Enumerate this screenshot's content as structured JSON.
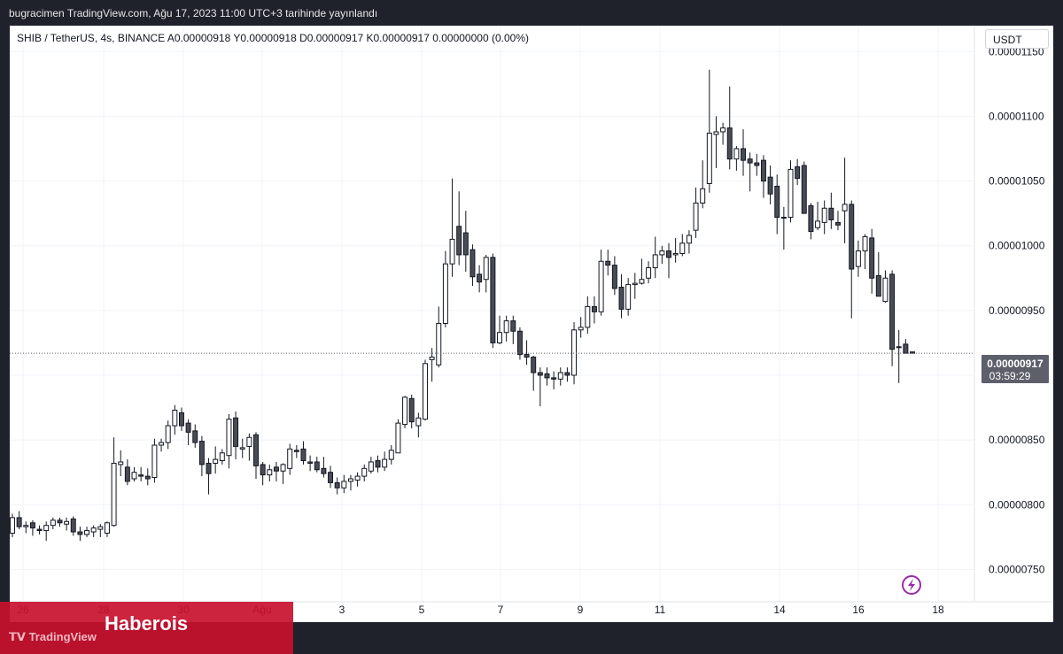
{
  "header": {
    "publish_line": "bugracimen TradingView.com, Ağu 17, 2023 11:00 UTC+3 tarihinde yayınlandı"
  },
  "legend": {
    "symbol_line": "SHIB / TetherUS, 4s, BINANCE  A0.00000918  Y0.00000918  D0.00000917  K0.00000917  0.00000000 (0.00%)"
  },
  "currency": "USDT",
  "price_badge": {
    "price": "0.00000917",
    "countdown": "03:59:29"
  },
  "footer": {
    "logo_text": "TradingView",
    "brand": "Haberois"
  },
  "colors": {
    "up_body": "#ffffff",
    "down_body": "#4a4c55",
    "wick": "#131722",
    "badge": "#5d606b",
    "brand_band": "#c8102e",
    "flash": "#9c27b0"
  },
  "icons": {
    "flash": "lightning-icon"
  },
  "chart_data": {
    "type": "candlestick",
    "y_ticks": [
      "0.00001150",
      "0.00001100",
      "0.00001050",
      "0.00001000",
      "0.00000950",
      "0.00000900",
      "0.00000850",
      "0.00000800",
      "0.00000750"
    ],
    "x_ticks": [
      "26",
      "28",
      "30",
      "Ağu",
      "3",
      "5",
      "7",
      "9",
      "11",
      "14",
      "16",
      "18"
    ],
    "ylim": [
      7.25e-06,
      1.17e-05
    ],
    "last_price": 9.17e-06,
    "candles": [
      [
        7.78e-06,
        7.93e-06,
        7.75e-06,
        7.9e-06
      ],
      [
        7.9e-06,
        7.95e-06,
        7.81e-06,
        7.83e-06
      ],
      [
        7.83e-06,
        7.87e-06,
        7.78e-06,
        7.84e-06
      ],
      [
        7.86e-06,
        7.88e-06,
        7.76e-06,
        7.82e-06
      ],
      [
        7.81e-06,
        7.84e-06,
        7.77e-06,
        7.8e-06
      ],
      [
        7.8e-06,
        7.87e-06,
        7.72e-06,
        7.84e-06
      ],
      [
        7.84e-06,
        7.9e-06,
        7.81e-06,
        7.88e-06
      ],
      [
        7.88e-06,
        7.9e-06,
        7.83e-06,
        7.86e-06
      ],
      [
        7.85e-06,
        7.9e-06,
        7.8e-06,
        7.87e-06
      ],
      [
        7.89e-06,
        7.91e-06,
        7.76e-06,
        7.79e-06
      ],
      [
        7.79e-06,
        7.83e-06,
        7.72e-06,
        7.77e-06
      ],
      [
        7.77e-06,
        7.83e-06,
        7.75e-06,
        7.8e-06
      ],
      [
        7.79e-06,
        7.84e-06,
        7.75e-06,
        7.82e-06
      ],
      [
        7.81e-06,
        7.85e-06,
        7.75e-06,
        7.83e-06
      ],
      [
        7.78e-06,
        7.87e-06,
        7.75e-06,
        7.86e-06
      ],
      [
        7.84e-06,
        8.52e-06,
        7.83e-06,
        8.32e-06
      ],
      [
        8.31e-06,
        8.42e-06,
        8.22e-06,
        8.33e-06
      ],
      [
        8.29e-06,
        8.35e-06,
        8.15e-06,
        8.18e-06
      ],
      [
        8.2e-06,
        8.29e-06,
        8.18e-06,
        8.25e-06
      ],
      [
        8.23e-06,
        8.29e-06,
        8.18e-06,
        8.22e-06
      ],
      [
        8.22e-06,
        8.28e-06,
        8.15e-06,
        8.2e-06
      ],
      [
        8.21e-06,
        8.51e-06,
        8.17e-06,
        8.46e-06
      ],
      [
        8.46e-06,
        8.51e-06,
        8.41e-06,
        8.48e-06
      ],
      [
        8.48e-06,
        8.65e-06,
        8.43e-06,
        8.61e-06
      ],
      [
        8.61e-06,
        8.77e-06,
        8.54e-06,
        8.73e-06
      ],
      [
        8.71e-06,
        8.75e-06,
        8.57e-06,
        8.61e-06
      ],
      [
        8.63e-06,
        8.66e-06,
        8.46e-06,
        8.56e-06
      ],
      [
        8.57e-06,
        8.62e-06,
        8.44e-06,
        8.48e-06
      ],
      [
        8.49e-06,
        8.53e-06,
        8.22e-06,
        8.31e-06
      ],
      [
        8.32e-06,
        8.36e-06,
        8.08e-06,
        8.24e-06
      ],
      [
        8.32e-06,
        8.45e-06,
        8.24e-06,
        8.35e-06
      ],
      [
        8.34e-06,
        8.43e-06,
        8.31e-06,
        8.4e-06
      ],
      [
        8.38e-06,
        8.7e-06,
        8.28e-06,
        8.66e-06
      ],
      [
        8.67e-06,
        8.72e-06,
        8.35e-06,
        8.45e-06
      ],
      [
        8.43e-06,
        8.51e-06,
        8.36e-06,
        8.44e-06
      ],
      [
        8.45e-06,
        8.55e-06,
        8.34e-06,
        8.52e-06
      ],
      [
        8.54e-06,
        8.56e-06,
        8.2e-06,
        8.3e-06
      ],
      [
        8.31e-06,
        8.33e-06,
        8.15e-06,
        8.23e-06
      ],
      [
        8.23e-06,
        8.31e-06,
        8.18e-06,
        8.27e-06
      ],
      [
        8.29e-06,
        8.33e-06,
        8.18e-06,
        8.26e-06
      ],
      [
        8.26e-06,
        8.32e-06,
        8.16e-06,
        8.31e-06
      ],
      [
        8.28e-06,
        8.47e-06,
        8.23e-06,
        8.43e-06
      ],
      [
        8.42e-06,
        8.46e-06,
        8.36e-06,
        8.41e-06
      ],
      [
        8.43e-06,
        8.49e-06,
        8.31e-06,
        8.34e-06
      ],
      [
        8.33e-06,
        8.38e-06,
        8.26e-06,
        8.32e-06
      ],
      [
        8.33e-06,
        8.37e-06,
        8.25e-06,
        8.27e-06
      ],
      [
        8.28e-06,
        8.37e-06,
        8.21e-06,
        8.24e-06
      ],
      [
        8.25e-06,
        8.3e-06,
        8.13e-06,
        8.17e-06
      ],
      [
        8.17e-06,
        8.21e-06,
        8.08e-06,
        8.13e-06
      ],
      [
        8.13e-06,
        8.23e-06,
        8.09e-06,
        8.18e-06
      ],
      [
        8.18e-06,
        8.23e-06,
        8.11e-06,
        8.2e-06
      ],
      [
        8.19e-06,
        8.25e-06,
        8.14e-06,
        8.22e-06
      ],
      [
        8.22e-06,
        8.31e-06,
        8.18e-06,
        8.28e-06
      ],
      [
        8.26e-06,
        8.37e-06,
        8.24e-06,
        8.33e-06
      ],
      [
        8.34e-06,
        8.38e-06,
        8.25e-06,
        8.29e-06
      ],
      [
        8.29e-06,
        8.41e-06,
        8.26e-06,
        8.35e-06
      ],
      [
        8.35e-06,
        8.46e-06,
        8.31e-06,
        8.42e-06
      ],
      [
        8.4e-06,
        8.66e-06,
        8.4e-06,
        8.63e-06
      ],
      [
        8.62e-06,
        8.84e-06,
        8.59e-06,
        8.83e-06
      ],
      [
        8.82e-06,
        8.85e-06,
        8.59e-06,
        8.64e-06
      ],
      [
        8.61e-06,
        8.71e-06,
        8.52e-06,
        8.67e-06
      ],
      [
        8.66e-06,
        9.12e-06,
        8.65e-06,
        9.09e-06
      ],
      [
        9.12e-06,
        9.21e-06,
        8.95e-06,
        9.14e-06
      ],
      [
        9.08e-06,
        9.53e-06,
        9.06e-06,
        9.4e-06
      ],
      [
        9.4e-06,
        9.96e-06,
        9.37e-06,
        9.86e-06
      ],
      [
        9.86e-06,
        1.052e-05,
        9.76e-06,
        1.005e-05
      ],
      [
        1.015e-05,
        1.042e-05,
        9.85e-06,
        9.93e-06
      ],
      [
        1.01e-05,
        1.027e-05,
        9.8e-06,
        9.93e-06
      ],
      [
        9.97e-06,
        1.001e-05,
        9.69e-06,
        9.76e-06
      ],
      [
        9.78e-06,
        9.85e-06,
        9.64e-06,
        9.72e-06
      ],
      [
        9.74e-06,
        9.93e-06,
        9.64e-06,
        9.91e-06
      ],
      [
        9.91e-06,
        9.94e-06,
        9.21e-06,
        9.25e-06
      ],
      [
        9.25e-06,
        9.46e-06,
        9.24e-06,
        9.33e-06
      ],
      [
        9.33e-06,
        9.46e-06,
        9.26e-06,
        9.42e-06
      ],
      [
        9.42e-06,
        9.46e-06,
        9.24e-06,
        9.34e-06
      ],
      [
        9.34e-06,
        9.37e-06,
        9.12e-06,
        9.16e-06
      ],
      [
        9.16e-06,
        9.27e-06,
        9.08e-06,
        9.14e-06
      ],
      [
        9.14e-06,
        9.15e-06,
        8.88e-06,
        9.02e-06
      ],
      [
        9.02e-06,
        9.06e-06,
        8.76e-06,
        9e-06
      ],
      [
        9.01e-06,
        9.06e-06,
        8.92e-06,
        8.98e-06
      ],
      [
        8.98e-06,
        9.03e-06,
        8.89e-06,
        8.97e-06
      ],
      [
        8.97e-06,
        9.06e-06,
        8.92e-06,
        9.02e-06
      ],
      [
        9.02e-06,
        9.06e-06,
        8.95e-06,
        9e-06
      ],
      [
        9e-06,
        9.41e-06,
        8.93e-06,
        9.35e-06
      ],
      [
        9.35e-06,
        9.45e-06,
        9.29e-06,
        9.37e-06
      ],
      [
        9.37e-06,
        9.61e-06,
        9.32e-06,
        9.53e-06
      ],
      [
        9.53e-06,
        9.61e-06,
        9.4e-06,
        9.49e-06
      ],
      [
        9.49e-06,
        9.97e-06,
        9.46e-06,
        9.88e-06
      ],
      [
        9.88e-06,
        9.97e-06,
        9.77e-06,
        9.85e-06
      ],
      [
        9.85e-06,
        9.92e-06,
        9.62e-06,
        9.67e-06
      ],
      [
        9.68e-06,
        9.78e-06,
        9.44e-06,
        9.51e-06
      ],
      [
        9.51e-06,
        9.75e-06,
        9.46e-06,
        9.7e-06
      ],
      [
        9.7e-06,
        9.79e-06,
        9.59e-06,
        9.71e-06
      ],
      [
        9.71e-06,
        9.9e-06,
        9.7e-06,
        9.74e-06
      ],
      [
        9.75e-06,
        9.88e-06,
        9.71e-06,
        9.83e-06
      ],
      [
        9.83e-06,
        1.007e-05,
        9.75e-06,
        9.93e-06
      ],
      [
        9.93e-06,
        1e-05,
        9.86e-06,
        9.96e-06
      ],
      [
        9.96e-06,
        1.002e-05,
        9.75e-06,
        9.91e-06
      ],
      [
        9.93e-06,
        1.006e-05,
        9.87e-06,
        9.94e-06
      ],
      [
        9.94e-06,
        1.009e-05,
        9.92e-06,
        1.002e-05
      ],
      [
        1.002e-05,
        1.012e-05,
        9.94e-06,
        1.008e-05
      ],
      [
        1.012e-05,
        1.045e-05,
        1.006e-05,
        1.033e-05
      ],
      [
        1.033e-05,
        1.066e-05,
        1.029e-05,
        1.044e-05
      ],
      [
        1.048e-05,
        1.136e-05,
        1.041e-05,
        1.087e-05
      ],
      [
        1.086e-05,
        1.1e-05,
        1.06e-05,
        1.088e-05
      ],
      [
        1.088e-05,
        1.095e-05,
        1.078e-05,
        1.091e-05
      ],
      [
        1.091e-05,
        1.123e-05,
        1.059e-05,
        1.067e-05
      ],
      [
        1.067e-05,
        1.077e-05,
        1.058e-05,
        1.075e-05
      ],
      [
        1.075e-05,
        1.09e-05,
        1.054e-05,
        1.066e-05
      ],
      [
        1.067e-05,
        1.072e-05,
        1.042e-05,
        1.064e-05
      ],
      [
        1.064e-05,
        1.071e-05,
        1.054e-05,
        1.062e-05
      ],
      [
        1.066e-05,
        1.07e-05,
        1.037e-05,
        1.05e-05
      ],
      [
        1.053e-05,
        1.062e-05,
        1.032e-05,
        1.04e-05
      ],
      [
        1.046e-05,
        1.055e-05,
        1.009e-05,
        1.022e-05
      ],
      [
        1.022e-05,
        1.03e-05,
        9.97e-06,
        1.022e-05
      ],
      [
        1.022e-05,
        1.066e-05,
        1.018e-05,
        1.059e-05
      ],
      [
        1.061e-05,
        1.067e-05,
        1.047e-05,
        1.052e-05
      ],
      [
        1.062e-05,
        1.065e-05,
        1.025e-05,
        1.025e-05
      ],
      [
        1.031e-05,
        1.033e-05,
        1.005e-05,
        1.011e-05
      ],
      [
        1.014e-05,
        1.034e-05,
        1.012e-05,
        1.019e-05
      ],
      [
        1.018e-05,
        1.035e-05,
        1.009e-05,
        1.029e-05
      ],
      [
        1.029e-05,
        1.041e-05,
        1.013e-05,
        1.02e-05
      ],
      [
        1.018e-05,
        1.027e-05,
        1.012e-05,
        1.016e-05
      ],
      [
        1.027e-05,
        1.068e-05,
        1.002e-05,
        1.032e-05
      ],
      [
        1.032e-05,
        1.035e-05,
        9.44e-06,
        9.82e-06
      ],
      [
        9.84e-06,
        1.004e-05,
        9.76e-06,
        9.96e-06
      ],
      [
        9.96e-06,
        1.009e-05,
        9.82e-06,
        1.007e-05
      ],
      [
        1.006e-05,
        1.013e-05,
        9.63e-06,
        9.75e-06
      ],
      [
        9.77e-06,
        9.95e-06,
        9.61e-06,
        9.61e-06
      ],
      [
        9.57e-06,
        9.81e-06,
        9.56e-06,
        9.75e-06
      ],
      [
        9.78e-06,
        9.81e-06,
        9.07e-06,
        9.2e-06
      ],
      [
        9.22e-06,
        9.35e-06,
        8.94e-06,
        9.22e-06
      ],
      [
        9.24e-06,
        9.28e-06,
        9.17e-06,
        9.17e-06
      ],
      [
        9.18e-06,
        9.18e-06,
        9.17e-06,
        9.17e-06
      ]
    ]
  }
}
